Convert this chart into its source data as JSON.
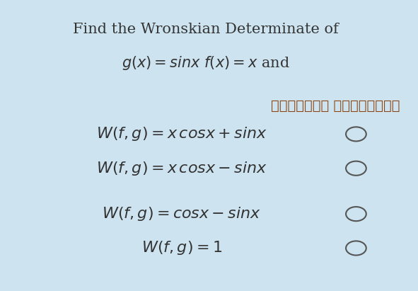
{
  "background_color": "#cde4f0",
  "title_line1": "Find the Wronskian Determinate of",
  "title_line2": "$g(x) = sinx\\ f(x) = x$ and",
  "arabic_text": "اخترأحد الخيارات",
  "options": [
    "$W(f,g) = x\\,cosx + sinx$",
    "$W(f,g) = x\\,cosx - sinx$",
    "$W(f,g) = cosx - sinx$",
    "$W(f,g) = 1$"
  ],
  "text_color": "#333333",
  "arabic_color": "#8B4513",
  "circle_color": "#555555",
  "title_fontsize": 15,
  "option_fontsize": 16,
  "arabic_fontsize": 14
}
